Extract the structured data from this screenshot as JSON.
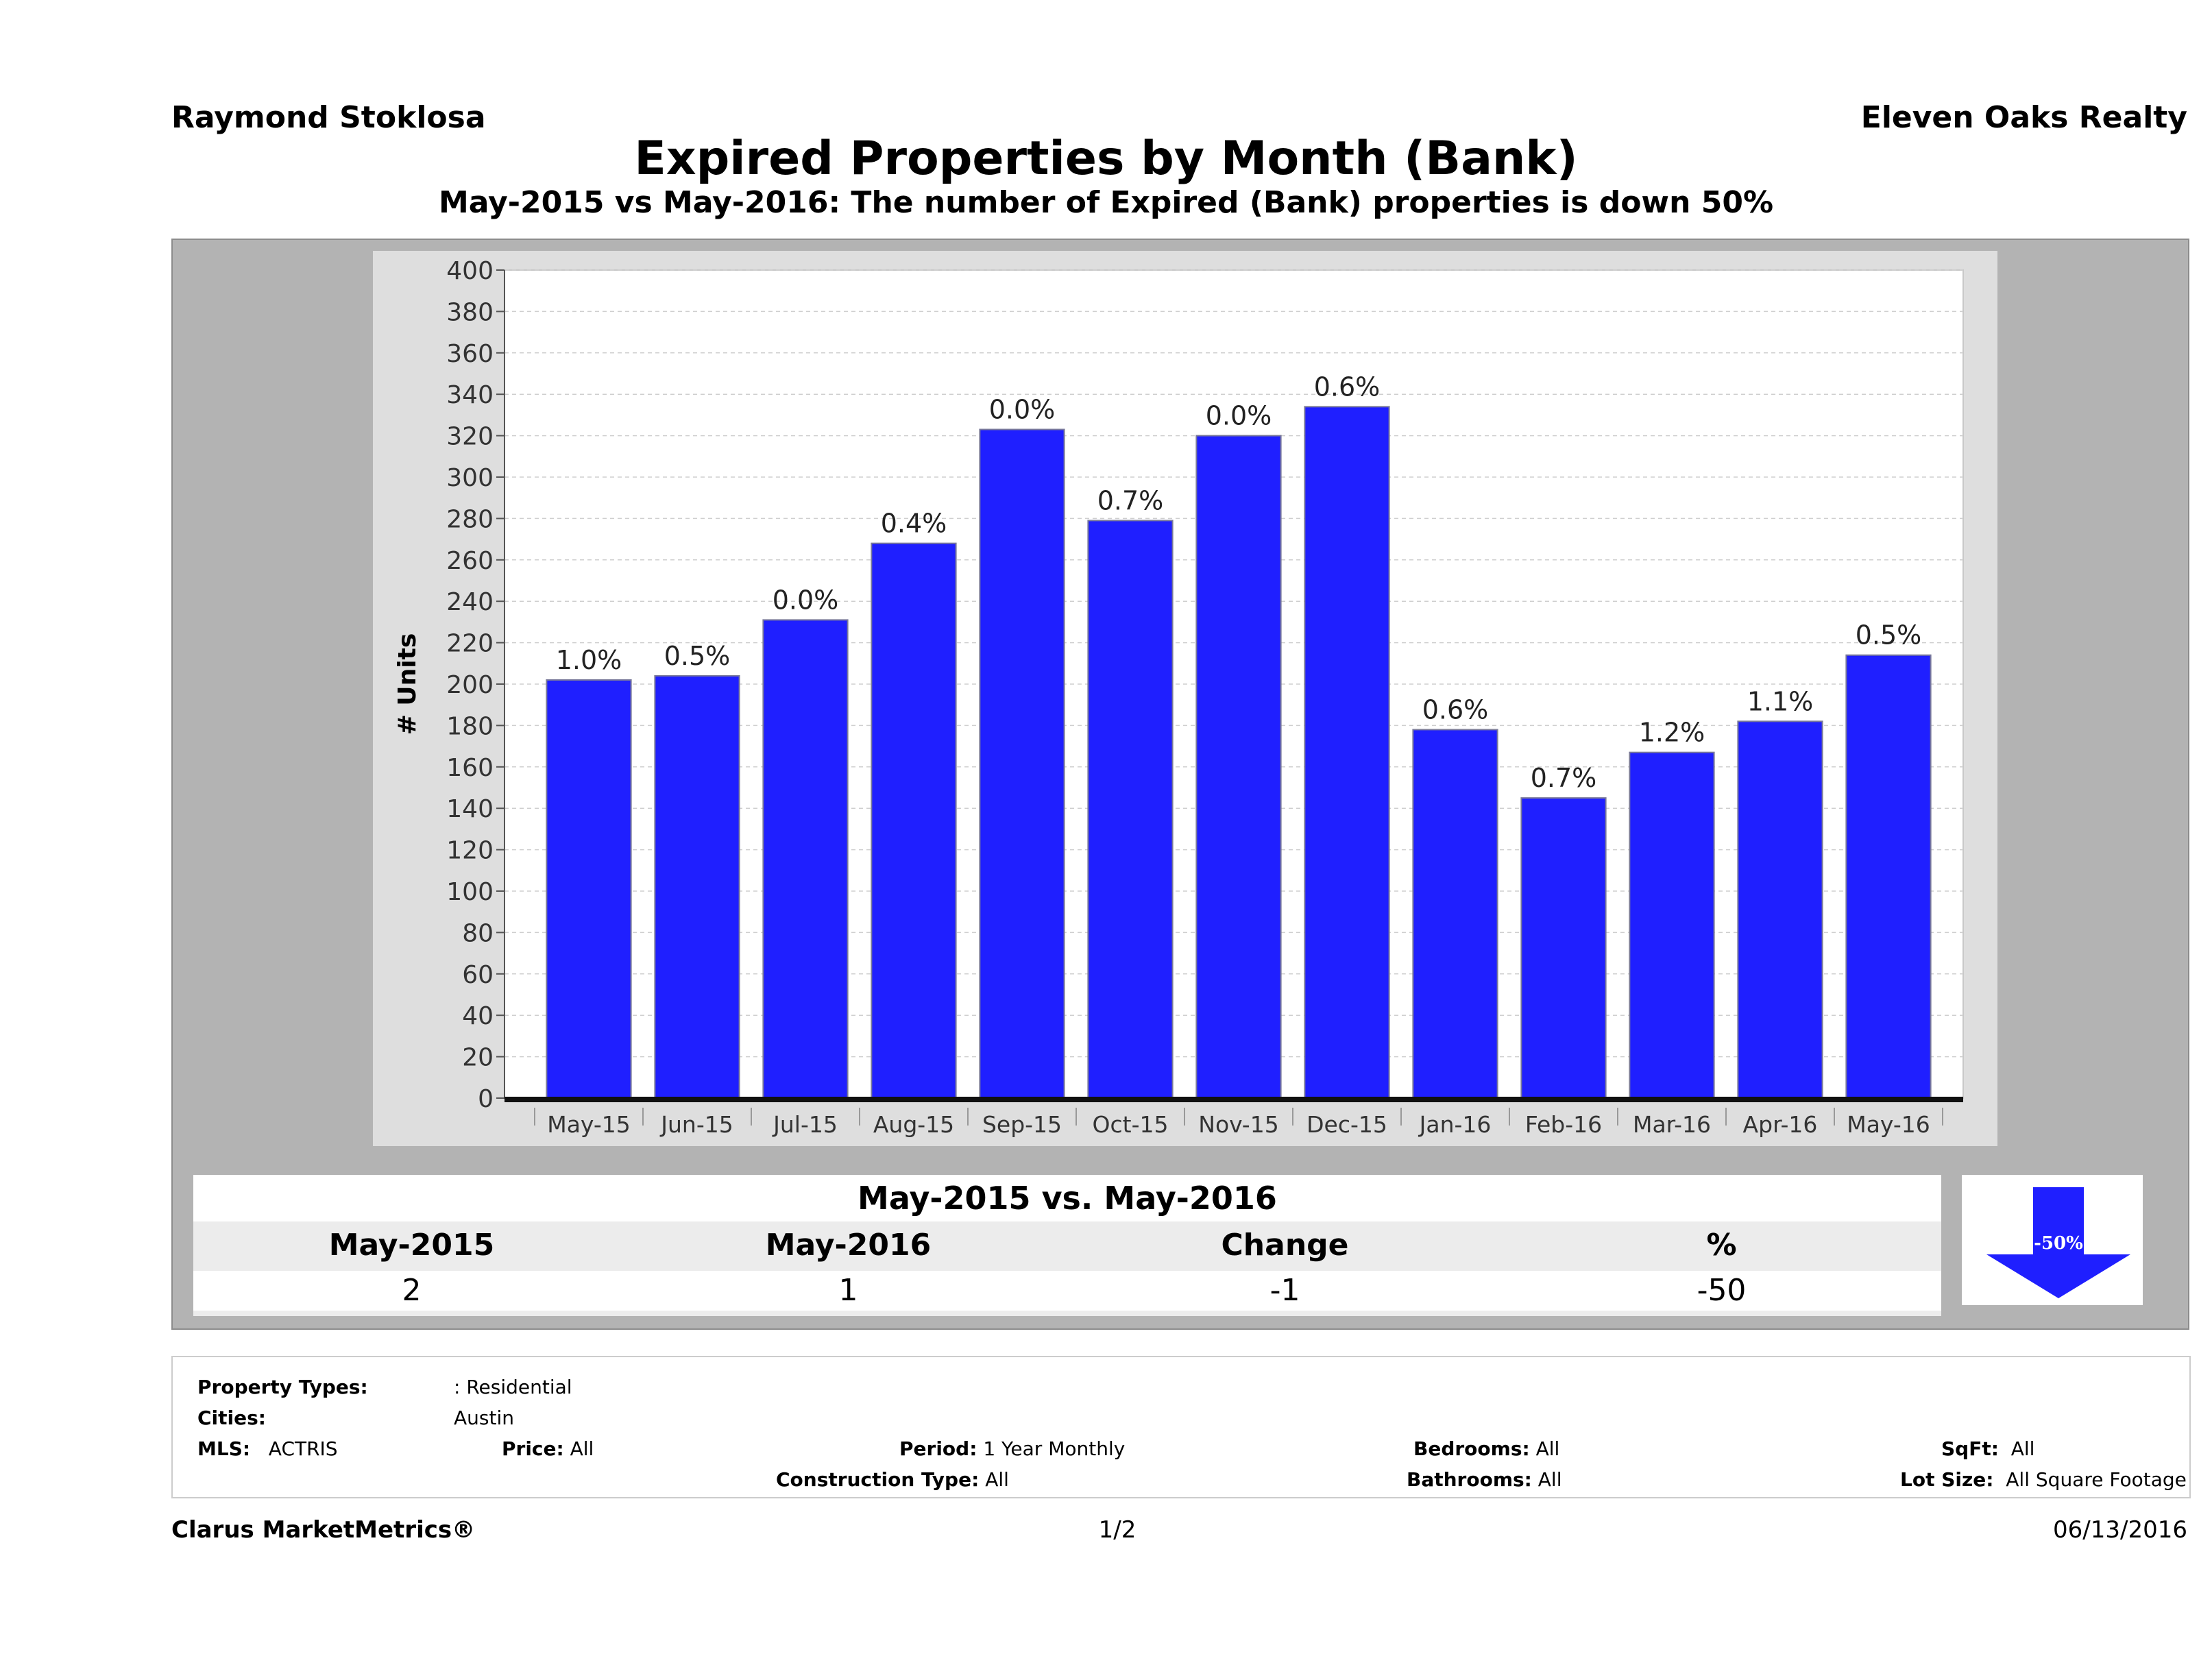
{
  "header": {
    "agent": "Raymond Stoklosa",
    "company": "Eleven Oaks Realty",
    "title": "Expired Properties by Month (Bank)",
    "subtitle": "May-2015 vs May-2016: The number of Expired (Bank)  properties is down 50%"
  },
  "chart_data": {
    "type": "bar",
    "ylabel": "# Units",
    "xlabel": "",
    "ylim": [
      0,
      400
    ],
    "ytick_step": 20,
    "grid": true,
    "categories": [
      "May-15",
      "Jun-15",
      "Jul-15",
      "Aug-15",
      "Sep-15",
      "Oct-15",
      "Nov-15",
      "Dec-15",
      "Jan-16",
      "Feb-16",
      "Mar-16",
      "Apr-16",
      "May-16"
    ],
    "series": [
      {
        "values": [
          202,
          204,
          231,
          268,
          323,
          279,
          320,
          334,
          178,
          145,
          167,
          182,
          214
        ]
      }
    ],
    "data_labels": [
      "1.0%",
      "0.5%",
      "0.0%",
      "0.4%",
      "0.0%",
      "0.7%",
      "0.0%",
      "0.6%",
      "0.6%",
      "0.7%",
      "1.2%",
      "1.1%",
      "0.5%"
    ],
    "bar_color": "#1f1fff"
  },
  "comparison": {
    "title": "May-2015 vs. May-2016",
    "headers": [
      "May-2015",
      "May-2016",
      "Change",
      "%"
    ],
    "values": [
      "2",
      "1",
      "-1",
      "-50"
    ],
    "arrow_label": "-50%",
    "arrow_color": "#1f1fff"
  },
  "criteria": {
    "property_types_label": "Property Types:",
    "property_types_value": ": Residential",
    "cities_label": "Cities:",
    "cities_value": "Austin",
    "mls_label": "MLS:",
    "mls_value": "ACTRIS",
    "price_label": "Price:",
    "price_value": "All",
    "period_label": "Period:",
    "period_value": "1 Year Monthly",
    "construction_label": "Construction Type:",
    "construction_value": "All",
    "bedrooms_label": "Bedrooms:",
    "bedrooms_value": "All",
    "bathrooms_label": "Bathrooms:",
    "bathrooms_value": "All",
    "sqft_label": "SqFt:",
    "sqft_value": "All",
    "lotsize_label": "Lot Size:",
    "lotsize_value": "All Square Footage"
  },
  "footer": {
    "brand": "Clarus MarketMetrics®",
    "page": "1/2",
    "date": "06/13/2016"
  }
}
